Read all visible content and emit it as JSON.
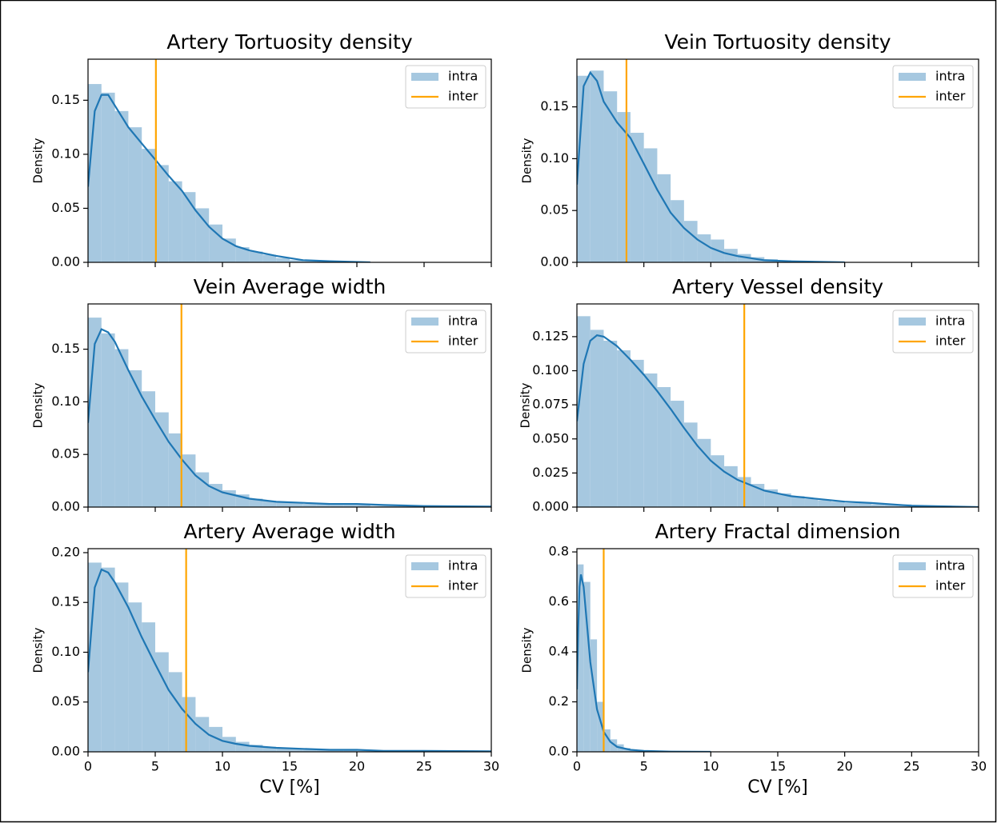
{
  "chart_data": [
    {
      "type": "histogram",
      "title": "Artery Tortuosity density",
      "ylabel": "Density",
      "xlim": [
        0,
        30
      ],
      "xticks": [
        0,
        5,
        10,
        15,
        20,
        25,
        30
      ],
      "ylim": [
        0,
        0.188
      ],
      "yticks": [
        {
          "value": 0,
          "label": "0.00"
        },
        0.05,
        {
          "value": 0.1,
          "label": "0.10"
        },
        0.15
      ],
      "hist": {
        "name": "intra",
        "color": "#a6c8e0",
        "bins": [
          0,
          1,
          2,
          3,
          4,
          5,
          6,
          7,
          8,
          9,
          10,
          11,
          12,
          13,
          14,
          15,
          16,
          17,
          18,
          19,
          20,
          21
        ],
        "values": [
          0.165,
          0.157,
          0.14,
          0.125,
          0.105,
          0.09,
          0.075,
          0.065,
          0.05,
          0.035,
          0.022,
          0.014,
          0.01,
          0.007,
          0.004,
          0.002,
          0.001,
          0.001,
          0.0005,
          0.0005,
          0.0003
        ]
      },
      "kde": {
        "color": "#1f77b4",
        "x": [
          0,
          0.5,
          1,
          1.5,
          2,
          3,
          4,
          5,
          6,
          7,
          8,
          9,
          10,
          11,
          12,
          14,
          16,
          18,
          21
        ],
        "values": [
          0.07,
          0.14,
          0.155,
          0.155,
          0.145,
          0.125,
          0.11,
          0.095,
          0.08,
          0.066,
          0.048,
          0.033,
          0.022,
          0.015,
          0.011,
          0.006,
          0.002,
          0.001,
          0
        ]
      },
      "vline": {
        "name": "inter",
        "color": "#ffa500",
        "value": 5.05
      }
    },
    {
      "type": "histogram",
      "title": "Vein Tortuosity density",
      "ylabel": "Density",
      "xlim": [
        0,
        30
      ],
      "xticks": [
        0,
        5,
        10,
        15,
        20,
        25,
        30
      ],
      "ylim": [
        0,
        0.196
      ],
      "yticks": [
        {
          "value": 0,
          "label": "0.00"
        },
        0.05,
        {
          "value": 0.1,
          "label": "0.10"
        },
        0.15
      ],
      "hist": {
        "name": "intra",
        "color": "#a6c8e0",
        "bins": [
          0,
          1,
          2,
          3,
          4,
          5,
          6,
          7,
          8,
          9,
          10,
          11,
          12,
          13,
          14,
          15,
          16,
          17,
          18,
          19,
          20
        ],
        "values": [
          0.18,
          0.185,
          0.165,
          0.145,
          0.125,
          0.11,
          0.085,
          0.06,
          0.04,
          0.027,
          0.022,
          0.013,
          0.008,
          0.005,
          0.003,
          0.002,
          0.001,
          0.001,
          0.0005,
          0.0003
        ]
      },
      "kde": {
        "color": "#1f77b4",
        "x": [
          0,
          0.5,
          1,
          1.5,
          2,
          3,
          4,
          5,
          6,
          7,
          8,
          9,
          10,
          11,
          12,
          14,
          16,
          20
        ],
        "values": [
          0.075,
          0.17,
          0.183,
          0.175,
          0.155,
          0.135,
          0.12,
          0.095,
          0.07,
          0.048,
          0.033,
          0.022,
          0.014,
          0.009,
          0.006,
          0.002,
          0.001,
          0
        ]
      },
      "vline": {
        "name": "inter",
        "color": "#ffa500",
        "value": 3.7
      }
    },
    {
      "type": "histogram",
      "title": "Vein Average width",
      "ylabel": "Density",
      "xlim": [
        0,
        30
      ],
      "xticks": [
        0,
        5,
        10,
        15,
        20,
        25,
        30
      ],
      "ylim": [
        0,
        0.193
      ],
      "yticks": [
        {
          "value": 0,
          "label": "0.00"
        },
        0.05,
        {
          "value": 0.1,
          "label": "0.10"
        },
        0.15
      ],
      "hist": {
        "name": "intra",
        "color": "#a6c8e0",
        "bins": [
          0,
          1,
          2,
          3,
          4,
          5,
          6,
          7,
          8,
          9,
          10,
          11,
          12,
          13,
          14,
          15,
          16,
          17,
          18,
          19,
          20,
          21,
          22,
          23,
          24,
          25,
          26,
          27,
          28,
          29,
          30
        ],
        "values": [
          0.18,
          0.165,
          0.15,
          0.13,
          0.11,
          0.09,
          0.07,
          0.05,
          0.033,
          0.022,
          0.016,
          0.012,
          0.008,
          0.006,
          0.005,
          0.004,
          0.003,
          0.003,
          0.002,
          0.002,
          0.002,
          0.001,
          0.001,
          0.001,
          0.001,
          0.0008,
          0.0008,
          0.0005,
          0.0005,
          0.0005
        ]
      },
      "kde": {
        "color": "#1f77b4",
        "x": [
          0,
          0.5,
          1,
          1.5,
          2,
          3,
          4,
          5,
          6,
          7,
          8,
          9,
          10,
          11,
          12,
          14,
          16,
          18,
          20,
          22,
          25,
          30
        ],
        "values": [
          0.08,
          0.155,
          0.169,
          0.166,
          0.157,
          0.13,
          0.105,
          0.083,
          0.062,
          0.045,
          0.03,
          0.02,
          0.014,
          0.011,
          0.008,
          0.005,
          0.004,
          0.003,
          0.003,
          0.002,
          0.001,
          0.0005
        ]
      },
      "vline": {
        "name": "inter",
        "color": "#ffa500",
        "value": 6.95
      }
    },
    {
      "type": "histogram",
      "title": "Artery Vessel density",
      "ylabel": "Density",
      "xlim": [
        0,
        30
      ],
      "xticks": [
        0,
        5,
        10,
        15,
        20,
        25,
        30
      ],
      "ylim": [
        0,
        0.149
      ],
      "yticks": [
        {
          "value": 0,
          "label": "0.000"
        },
        0.025,
        {
          "value": 0.05,
          "label": "0.050"
        },
        0.075,
        {
          "value": 0.1,
          "label": "0.100"
        },
        0.125
      ],
      "hist": {
        "name": "intra",
        "color": "#a6c8e0",
        "bins": [
          0,
          1,
          2,
          3,
          4,
          5,
          6,
          7,
          8,
          9,
          10,
          11,
          12,
          13,
          14,
          15,
          16,
          17,
          18,
          19,
          20,
          21,
          22,
          23,
          24,
          25,
          26,
          27,
          28,
          29,
          30
        ],
        "values": [
          0.14,
          0.13,
          0.122,
          0.115,
          0.108,
          0.098,
          0.088,
          0.078,
          0.062,
          0.05,
          0.038,
          0.03,
          0.022,
          0.017,
          0.013,
          0.01,
          0.008,
          0.006,
          0.005,
          0.004,
          0.003,
          0.003,
          0.002,
          0.002,
          0.002,
          0.001,
          0.001,
          0.001,
          0.0005,
          0.0005
        ]
      },
      "kde": {
        "color": "#1f77b4",
        "x": [
          0,
          0.5,
          1,
          1.5,
          2,
          3,
          4,
          5,
          6,
          7,
          8,
          9,
          10,
          11,
          12,
          14,
          16,
          18,
          20,
          22,
          25,
          30
        ],
        "values": [
          0.063,
          0.105,
          0.122,
          0.126,
          0.125,
          0.118,
          0.108,
          0.097,
          0.085,
          0.072,
          0.058,
          0.045,
          0.034,
          0.026,
          0.02,
          0.012,
          0.008,
          0.006,
          0.004,
          0.003,
          0.001,
          0
        ]
      },
      "vline": {
        "name": "inter",
        "color": "#ffa500",
        "value": 12.5
      }
    },
    {
      "type": "histogram",
      "title": "Artery Average width",
      "ylabel": "Density",
      "xlabel": "CV [%]",
      "xlim": [
        0,
        30
      ],
      "xticks": [
        0,
        5,
        10,
        15,
        20,
        25,
        30
      ],
      "ylim": [
        0,
        0.204
      ],
      "yticks": [
        {
          "value": 0,
          "label": "0.00"
        },
        0.05,
        {
          "value": 0.1,
          "label": "0.10"
        },
        0.15,
        {
          "value": 0.2,
          "label": "0.20"
        }
      ],
      "hist": {
        "name": "intra",
        "color": "#a6c8e0",
        "bins": [
          0,
          1,
          2,
          3,
          4,
          5,
          6,
          7,
          8,
          9,
          10,
          11,
          12,
          13,
          14,
          15,
          16,
          17,
          18,
          19,
          20,
          21,
          22,
          23,
          24,
          25,
          26,
          27,
          28,
          29,
          30
        ],
        "values": [
          0.19,
          0.185,
          0.17,
          0.15,
          0.13,
          0.1,
          0.08,
          0.055,
          0.035,
          0.025,
          0.015,
          0.01,
          0.007,
          0.005,
          0.004,
          0.003,
          0.003,
          0.002,
          0.002,
          0.002,
          0.001,
          0.001,
          0.001,
          0.001,
          0.001,
          0.0008,
          0.0005,
          0.0005,
          0.0005,
          0.0005
        ]
      },
      "kde": {
        "color": "#1f77b4",
        "x": [
          0,
          0.5,
          1,
          1.5,
          2,
          3,
          4,
          5,
          6,
          7,
          8,
          9,
          10,
          11,
          12,
          14,
          16,
          18,
          20,
          22,
          25,
          30
        ],
        "values": [
          0.08,
          0.165,
          0.183,
          0.18,
          0.17,
          0.145,
          0.115,
          0.088,
          0.062,
          0.043,
          0.028,
          0.017,
          0.011,
          0.008,
          0.006,
          0.004,
          0.003,
          0.002,
          0.002,
          0.001,
          0.001,
          0.0005
        ]
      },
      "vline": {
        "name": "inter",
        "color": "#ffa500",
        "value": 7.3
      }
    },
    {
      "type": "histogram",
      "title": "Artery Fractal dimension",
      "ylabel": "Density",
      "xlabel": "CV [%]",
      "xlim": [
        0,
        30
      ],
      "xticks": [
        0,
        5,
        10,
        15,
        20,
        25,
        30
      ],
      "ylim": [
        0,
        0.813
      ],
      "yticks": [
        {
          "value": 0,
          "label": "0.0"
        },
        0.2,
        0.4,
        0.6,
        0.8
      ],
      "hist": {
        "name": "intra",
        "color": "#a6c8e0",
        "bins": [
          0,
          0.5,
          1,
          1.5,
          2,
          2.5,
          3,
          3.5,
          4,
          4.5,
          5,
          5.5,
          6,
          6.5,
          7
        ],
        "values": [
          0.75,
          0.68,
          0.45,
          0.2,
          0.09,
          0.05,
          0.03,
          0.015,
          0.01,
          0.006,
          0.004,
          0.003,
          0.002,
          0.001
        ]
      },
      "kde": {
        "color": "#1f77b4",
        "x": [
          0,
          0.1,
          0.2,
          0.3,
          0.5,
          0.8,
          1,
          1.5,
          2,
          2.5,
          3,
          4,
          5,
          7,
          10
        ],
        "values": [
          0.25,
          0.5,
          0.66,
          0.71,
          0.66,
          0.48,
          0.36,
          0.17,
          0.08,
          0.04,
          0.02,
          0.008,
          0.004,
          0.001,
          0
        ]
      },
      "vline": {
        "name": "inter",
        "color": "#ffa500",
        "value": 2.0
      }
    }
  ]
}
